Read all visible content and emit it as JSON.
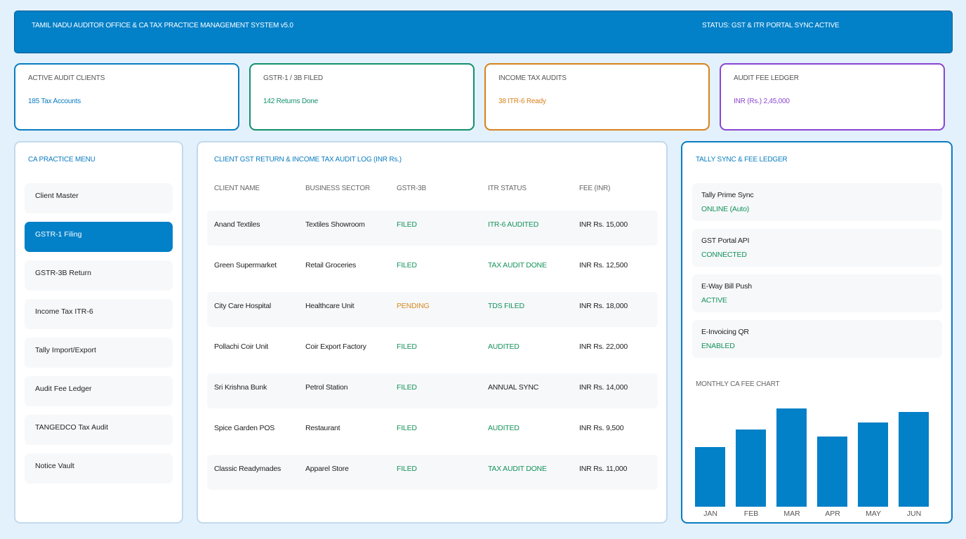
{
  "header": {
    "title": "TAMIL NADU AUDITOR OFFICE & CA TAX PRACTICE MANAGEMENT SYSTEM v5.0",
    "status": "STATUS: GST & ITR PORTAL SYNC ACTIVE"
  },
  "kpis": [
    {
      "label": "ACTIVE AUDIT CLIENTS",
      "value": "185 Tax Accounts",
      "color": "#0a7cc0"
    },
    {
      "label": "GSTR-1 / 3B FILED",
      "value": "142 Returns Done",
      "color": "#12906a"
    },
    {
      "label": "INCOME TAX AUDITS",
      "value": "38 ITR-6 Ready",
      "color": "#d8821c"
    },
    {
      "label": "AUDIT FEE LEDGER",
      "value": "INR (Rs.) 2,45,000",
      "color": "#8a44d0"
    }
  ],
  "sidebar": {
    "title": "CA PRACTICE MENU",
    "items": [
      {
        "label": "Client Master"
      },
      {
        "label": "GSTR-1 Filing",
        "active": true
      },
      {
        "label": "GSTR-3B Return"
      },
      {
        "label": "Income Tax ITR-6"
      },
      {
        "label": "Tally Import/Export"
      },
      {
        "label": "Audit Fee Ledger"
      },
      {
        "label": "TANGEDCO Tax Audit"
      },
      {
        "label": "Notice Vault"
      }
    ]
  },
  "table": {
    "title": "CLIENT GST RETURN & INCOME TAX AUDIT LOG (INR Rs.)",
    "headers": [
      "CLIENT NAME",
      "BUSINESS SECTOR",
      "GSTR-3B",
      "ITR STATUS",
      "FEE (INR)"
    ],
    "rows": [
      {
        "client": "Anand Textiles",
        "sector": "Textiles Showroom",
        "gstr": "FILED",
        "itr": "ITR-6 AUDITED",
        "fee": "INR Rs. 15,000"
      },
      {
        "client": "Green Supermarket",
        "sector": "Retail Groceries",
        "gstr": "FILED",
        "itr": "TAX AUDIT DONE",
        "fee": "INR Rs. 12,500"
      },
      {
        "client": "City Care Hospital",
        "sector": "Healthcare Unit",
        "gstr": "PENDING",
        "itr": "TDS FILED",
        "fee": "INR Rs. 18,000"
      },
      {
        "client": "Pollachi Coir Unit",
        "sector": "Coir Export Factory",
        "gstr": "FILED",
        "itr": "AUDITED",
        "fee": "INR Rs. 22,000"
      },
      {
        "client": "Sri Krishna Bunk",
        "sector": "Petrol Station",
        "gstr": "FILED",
        "itr": "ANNUAL SYNC",
        "fee": "INR Rs. 14,000"
      },
      {
        "client": "Spice Garden POS",
        "sector": "Restaurant",
        "gstr": "FILED",
        "itr": "AUDITED",
        "fee": "INR Rs. 9,500"
      },
      {
        "client": "Classic Readymades",
        "sector": "Apparel Store",
        "gstr": "FILED",
        "itr": "TAX AUDIT DONE",
        "fee": "INR Rs. 11,000"
      }
    ]
  },
  "tally": {
    "title": "TALLY SYNC & FEE LEDGER",
    "items": [
      {
        "name": "Tally Prime Sync",
        "status": "ONLINE (Auto)"
      },
      {
        "name": "GST Portal API",
        "status": "CONNECTED"
      },
      {
        "name": "E-Way Bill Push",
        "status": "ACTIVE"
      },
      {
        "name": "E-Invoicing QR",
        "status": "ENABLED"
      }
    ]
  },
  "chart_data": {
    "type": "bar",
    "title": "MONTHLY CA FEE CHART",
    "categories": [
      "JAN",
      "FEB",
      "MAR",
      "APR",
      "MAY",
      "JUN"
    ],
    "values": [
      85,
      110,
      140,
      100,
      120,
      135
    ],
    "ylim": [
      0,
      140
    ],
    "color": "#0280c8"
  }
}
